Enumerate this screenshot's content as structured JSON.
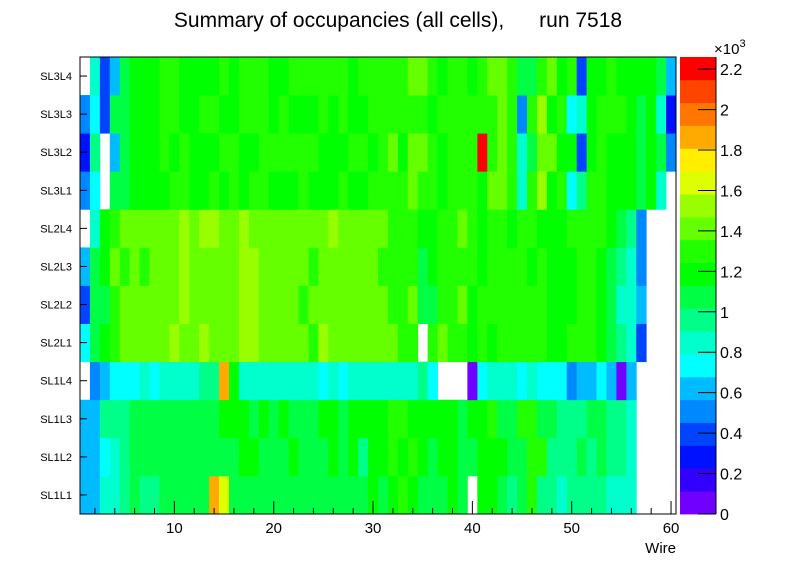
{
  "chart_data": {
    "type": "heatmap",
    "title": "Summary of occupancies (all cells),      run 7518",
    "xlabel": "Wire",
    "ylabel": "",
    "x": [
      1,
      2,
      3,
      4,
      5,
      6,
      7,
      8,
      9,
      10,
      11,
      12,
      13,
      14,
      15,
      16,
      17,
      18,
      19,
      20,
      21,
      22,
      23,
      24,
      25,
      26,
      27,
      28,
      29,
      30,
      31,
      32,
      33,
      34,
      35,
      36,
      37,
      38,
      39,
      40,
      41,
      42,
      43,
      44,
      45,
      46,
      47,
      48,
      49,
      50,
      51,
      52,
      53,
      54,
      55,
      56,
      57,
      58,
      59,
      60
    ],
    "xlim": [
      0.5,
      60.5
    ],
    "x_ticks": [
      "10",
      "20",
      "30",
      "40",
      "50",
      "60"
    ],
    "x_tick_values": [
      10,
      20,
      30,
      40,
      50,
      60
    ],
    "y_categories": [
      "SL1L1",
      "SL1L2",
      "SL1L3",
      "SL1L4",
      "SL2L1",
      "SL2L2",
      "SL2L3",
      "SL2L4",
      "SL3L1",
      "SL3L2",
      "SL3L3",
      "SL3L4"
    ],
    "zlim": [
      0,
      2260
    ],
    "z_exponent_label": "×10",
    "z_exponent_power": "3",
    "z_ticks": [
      "0",
      "0.2",
      "0.4",
      "0.6",
      "0.8",
      "1",
      "1.2",
      "1.4",
      "1.6",
      "1.8",
      "2",
      "2.2"
    ],
    "z_tick_values": [
      0,
      200,
      400,
      600,
      800,
      1000,
      1200,
      1400,
      1600,
      1800,
      2000,
      2200
    ],
    "palette": [
      "#7000ff",
      "#3300ff",
      "#0011ff",
      "#0044ff",
      "#0088ff",
      "#00bbff",
      "#00ffff",
      "#00ffcc",
      "#00ff88",
      "#00ff44",
      "#00ff00",
      "#22ff00",
      "#66ff00",
      "#99ff00",
      "#ddff00",
      "#ffee00",
      "#ffaa00",
      "#ff7700",
      "#ff4400",
      "#ff0000"
    ],
    "z": [
      [
        620,
        620,
        850,
        850,
        960,
        1075,
        960,
        960,
        1075,
        1075,
        1075,
        1075,
        1075,
        1865,
        1640,
        1075,
        1075,
        1075,
        1075,
        1075,
        1075,
        1075,
        1075,
        1075,
        1075,
        1075,
        1075,
        1075,
        1075,
        1190,
        1075,
        1190,
        1300,
        1190,
        1075,
        1075,
        1075,
        1190,
        1075,
        0,
        1190,
        1190,
        1075,
        960,
        1075,
        1300,
        960,
        960,
        850,
        960,
        960,
        960,
        960,
        850,
        850,
        850,
        0,
        0,
        0,
        0
      ],
      [
        620,
        620,
        735,
        850,
        960,
        1075,
        1075,
        1075,
        1075,
        1075,
        1075,
        1075,
        1075,
        1075,
        1075,
        1075,
        1190,
        1190,
        1075,
        1075,
        1075,
        1190,
        1075,
        1075,
        1075,
        1190,
        1075,
        1190,
        960,
        1190,
        1190,
        1300,
        1190,
        1300,
        1190,
        1075,
        1190,
        1190,
        1075,
        1075,
        1190,
        1190,
        1190,
        1075,
        1075,
        1300,
        1300,
        960,
        960,
        960,
        1075,
        960,
        1075,
        960,
        960,
        850,
        0,
        0,
        0,
        0
      ],
      [
        620,
        620,
        960,
        960,
        960,
        1075,
        1075,
        1075,
        1075,
        1075,
        1075,
        1075,
        1075,
        1075,
        1190,
        1190,
        1190,
        1075,
        1190,
        1075,
        1190,
        1075,
        1075,
        1075,
        1190,
        1190,
        1075,
        1190,
        1190,
        1190,
        1190,
        1300,
        1300,
        1190,
        1190,
        1190,
        1190,
        1190,
        1075,
        1190,
        1190,
        1300,
        1075,
        1075,
        1300,
        1300,
        1075,
        1075,
        960,
        960,
        960,
        1075,
        1075,
        960,
        960,
        850,
        0,
        0,
        0,
        0
      ],
      [
        0,
        510,
        620,
        735,
        735,
        735,
        850,
        735,
        850,
        850,
        850,
        850,
        960,
        960,
        1865,
        1190,
        850,
        850,
        850,
        850,
        850,
        850,
        850,
        850,
        735,
        850,
        735,
        850,
        850,
        850,
        850,
        850,
        850,
        850,
        960,
        735,
        0,
        0,
        0,
        60,
        735,
        850,
        850,
        850,
        735,
        850,
        735,
        735,
        735,
        510,
        620,
        620,
        735,
        620,
        60,
        620,
        0,
        0,
        0,
        0
      ],
      [
        735,
        1075,
        1190,
        1300,
        1410,
        1410,
        1410,
        1410,
        1410,
        1525,
        1410,
        1410,
        1525,
        1410,
        1410,
        1410,
        1525,
        1525,
        1410,
        1410,
        1410,
        1410,
        1410,
        1300,
        1525,
        1410,
        1410,
        1410,
        1410,
        1410,
        1410,
        1410,
        1300,
        1300,
        0,
        1300,
        1410,
        1300,
        1300,
        1190,
        1300,
        1190,
        1300,
        1300,
        1300,
        1300,
        1300,
        1190,
        1190,
        1300,
        1300,
        1300,
        1190,
        1075,
        960,
        850,
        400,
        0,
        0,
        0
      ],
      [
        400,
        1075,
        1075,
        1300,
        1410,
        1410,
        1410,
        1410,
        1410,
        1410,
        1525,
        1410,
        1410,
        1410,
        1410,
        1410,
        1525,
        1525,
        1410,
        1410,
        1410,
        1410,
        1300,
        1410,
        1410,
        1410,
        1410,
        1410,
        1410,
        1410,
        1410,
        1300,
        1300,
        1410,
        1075,
        1075,
        1300,
        1300,
        1410,
        1190,
        1300,
        1300,
        1300,
        1300,
        1300,
        1300,
        1300,
        1190,
        1190,
        1190,
        1300,
        1300,
        1190,
        1075,
        850,
        850,
        620,
        0,
        0,
        0
      ],
      [
        620,
        1075,
        1190,
        1410,
        1300,
        1410,
        1300,
        1410,
        1410,
        1410,
        1525,
        1410,
        1410,
        1410,
        1410,
        1410,
        1525,
        1525,
        1410,
        1410,
        1410,
        1410,
        1410,
        1300,
        1410,
        1410,
        1410,
        1410,
        1410,
        1410,
        1300,
        1300,
        1300,
        1300,
        1075,
        1190,
        1300,
        1300,
        1300,
        1300,
        1190,
        1300,
        1300,
        1300,
        1300,
        1190,
        1300,
        1190,
        1190,
        1190,
        1300,
        1300,
        1190,
        1075,
        960,
        850,
        510,
        0,
        0,
        0
      ],
      [
        0,
        850,
        1190,
        1300,
        1410,
        1410,
        1410,
        1410,
        1410,
        1410,
        1525,
        1410,
        1525,
        1525,
        1410,
        1410,
        1525,
        1410,
        1410,
        1410,
        1410,
        1410,
        1410,
        1410,
        1410,
        1525,
        1410,
        1410,
        1410,
        1410,
        1410,
        1300,
        1300,
        1300,
        1190,
        1190,
        1300,
        1300,
        1410,
        1300,
        1190,
        1300,
        1300,
        1190,
        1300,
        1300,
        1190,
        1190,
        1190,
        1300,
        1300,
        1300,
        1300,
        1190,
        1075,
        960,
        510,
        0,
        0,
        0
      ],
      [
        510,
        735,
        0,
        1075,
        1075,
        1190,
        1190,
        1190,
        1190,
        1300,
        1300,
        1190,
        1190,
        1300,
        1190,
        1300,
        1190,
        1300,
        1300,
        1190,
        1190,
        1190,
        1300,
        1190,
        1190,
        1190,
        1300,
        1190,
        1190,
        1300,
        1300,
        1300,
        1300,
        1410,
        1300,
        1300,
        1190,
        1300,
        1300,
        1300,
        1190,
        1410,
        1410,
        1300,
        850,
        1300,
        1525,
        1190,
        1300,
        735,
        960,
        1300,
        1300,
        1190,
        1190,
        1190,
        1075,
        1190,
        850,
        0
      ],
      [
        280,
        960,
        0,
        620,
        1075,
        1190,
        1190,
        1190,
        1300,
        1190,
        1300,
        1190,
        1190,
        1190,
        1300,
        1300,
        1190,
        1190,
        1300,
        1300,
        1300,
        1300,
        1300,
        1300,
        1190,
        1190,
        1190,
        1300,
        1300,
        1190,
        1300,
        1410,
        1190,
        1410,
        1410,
        1300,
        1190,
        1300,
        1300,
        1300,
        2200,
        1300,
        1410,
        1300,
        850,
        1075,
        1410,
        1410,
        1190,
        1190,
        400,
        1190,
        1300,
        1190,
        1190,
        1190,
        1075,
        1190,
        1075,
        510
      ],
      [
        510,
        735,
        400,
        1075,
        1075,
        1190,
        1190,
        1190,
        1300,
        1300,
        1190,
        1190,
        1300,
        1300,
        1190,
        1190,
        1300,
        1300,
        1300,
        1190,
        1300,
        1190,
        1190,
        1190,
        1300,
        1190,
        1300,
        1190,
        1190,
        1300,
        1300,
        1300,
        1300,
        1300,
        1300,
        1190,
        1300,
        1300,
        1300,
        1300,
        1300,
        1300,
        1410,
        1300,
        510,
        1300,
        1525,
        1190,
        1300,
        735,
        850,
        1190,
        1300,
        1300,
        1300,
        1190,
        1075,
        1190,
        850,
        280
      ],
      [
        0,
        850,
        400,
        620,
        1075,
        1190,
        1190,
        1190,
        1300,
        1300,
        1190,
        1190,
        1190,
        1190,
        1300,
        1190,
        1300,
        1300,
        1300,
        1190,
        1190,
        1300,
        1300,
        1300,
        1300,
        1300,
        1300,
        1190,
        1300,
        1300,
        1300,
        1300,
        1300,
        1410,
        1410,
        1300,
        1190,
        1300,
        1300,
        1190,
        1300,
        1410,
        1410,
        1300,
        1075,
        1075,
        1300,
        1410,
        1190,
        1300,
        400,
        1190,
        1190,
        1300,
        1190,
        1190,
        1190,
        1190,
        1075,
        620
      ]
    ]
  }
}
